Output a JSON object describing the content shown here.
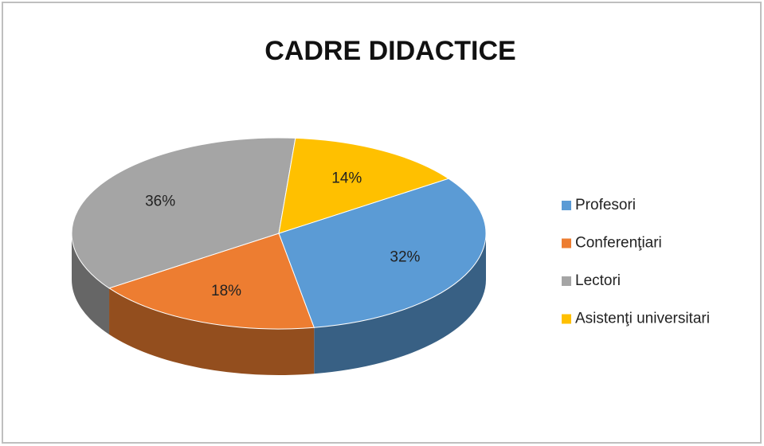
{
  "chart_data": {
    "type": "pie3d",
    "title": "CADRE DIDACTICE",
    "categories": [
      "Profesori",
      "Conferenţiari",
      "Lectori",
      "Asistenţi universitari"
    ],
    "values": [
      32,
      18,
      36,
      14
    ],
    "value_labels": [
      "32%",
      "18%",
      "36%",
      "14%"
    ],
    "colors": [
      "#5b9bd5",
      "#ed7d31",
      "#a5a5a5",
      "#ffc000"
    ],
    "legend": "right"
  }
}
